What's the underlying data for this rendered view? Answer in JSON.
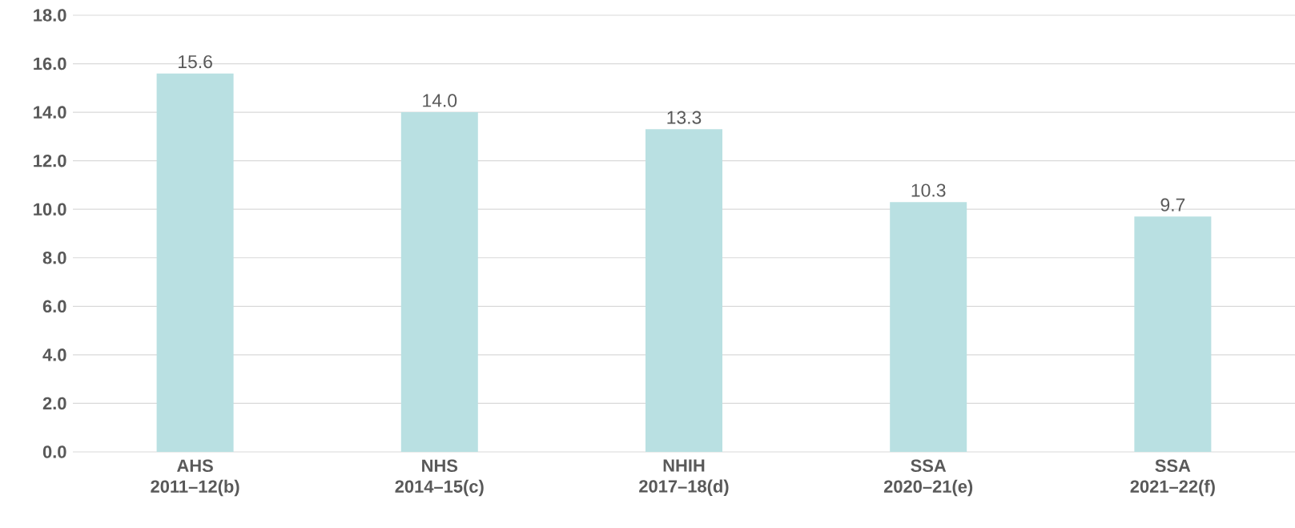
{
  "chart_data": {
    "type": "bar",
    "categories": [
      "AHS 2011–12(b)",
      "NHS 2014–15(c)",
      "NHIH 2017–18(d)",
      "SSA 2020–21(e)",
      "SSA 2021–22(f)"
    ],
    "values": [
      15.6,
      14.0,
      13.3,
      10.3,
      9.7
    ],
    "color": "#b9e0e2",
    "ylim": [
      0,
      18
    ],
    "yticks": [
      {
        "value": 0,
        "label": "0.0"
      },
      {
        "value": 2,
        "label": "2.0"
      },
      {
        "value": 4,
        "label": "4.0"
      },
      {
        "value": 6,
        "label": "6.0"
      },
      {
        "value": 8,
        "label": "8.0"
      },
      {
        "value": 10,
        "label": "10.0"
      },
      {
        "value": 12,
        "label": "12.0"
      },
      {
        "value": 14,
        "label": "14.0"
      },
      {
        "value": 16,
        "label": "16.0"
      },
      {
        "value": 18,
        "label": "18.0"
      }
    ],
    "grid": "y",
    "value_labels": [
      "15.6",
      "14.0",
      "13.3",
      "10.3",
      "9.7"
    ]
  }
}
